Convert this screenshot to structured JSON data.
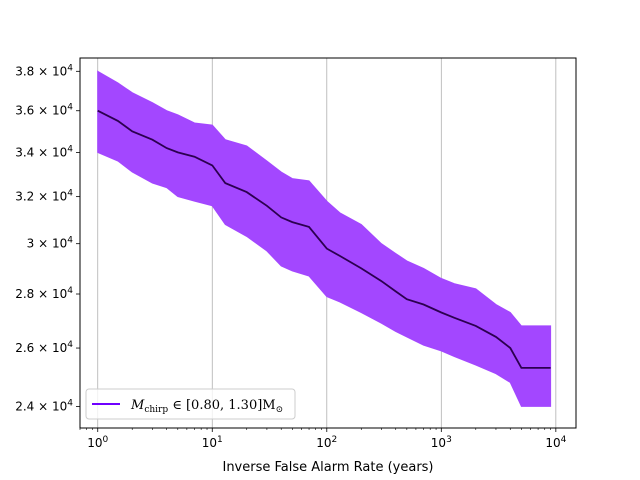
{
  "chart_data": {
    "type": "line",
    "title": "",
    "xlabel": "Inverse False Alarm Rate (years)",
    "ylabel": "",
    "xscale": "log",
    "yscale": "log",
    "xlim": [
      0.7,
      15000
    ],
    "ylim": [
      23300,
      38700
    ],
    "grid": "x-major",
    "legend_position": "lower-left",
    "x_ticks": [
      {
        "value": 1,
        "label": "10^0"
      },
      {
        "value": 10,
        "label": "10^1"
      },
      {
        "value": 100,
        "label": "10^2"
      },
      {
        "value": 1000,
        "label": "10^3"
      },
      {
        "value": 10000,
        "label": "10^4"
      }
    ],
    "y_ticks": [
      {
        "value": 24000,
        "label": "2.4 × 10^4"
      },
      {
        "value": 26000,
        "label": "2.6 × 10^4"
      },
      {
        "value": 28000,
        "label": "2.8 × 10^4"
      },
      {
        "value": 30000,
        "label": "3 × 10^4"
      },
      {
        "value": 32000,
        "label": "3.2 × 10^4"
      },
      {
        "value": 34000,
        "label": "3.4 × 10^4"
      },
      {
        "value": 36000,
        "label": "3.6 × 10^4"
      },
      {
        "value": 38000,
        "label": "3.8 × 10^4"
      }
    ],
    "series": [
      {
        "name": "M_chirp ∈ [0.80, 1.30] M_⊙",
        "color": "#6f00ff",
        "line_color": "#2c0050",
        "band_color": "#a347ff",
        "x": [
          1,
          1.5,
          2,
          3,
          4,
          5,
          7,
          10,
          13,
          20,
          30,
          40,
          50,
          70,
          100,
          130,
          200,
          300,
          400,
          500,
          700,
          1000,
          1300,
          2000,
          3000,
          4000,
          5000,
          7000,
          9000
        ],
        "y": [
          36000,
          35500,
          35000,
          34600,
          34200,
          34000,
          33800,
          33400,
          32600,
          32200,
          31600,
          31100,
          30900,
          30700,
          29800,
          29500,
          29000,
          28500,
          28100,
          27800,
          27600,
          27300,
          27100,
          26800,
          26400,
          26000,
          25300,
          25300,
          25300
        ],
        "y_upper": [
          38000,
          37400,
          36900,
          36400,
          36000,
          35800,
          35400,
          35300,
          34600,
          34300,
          33600,
          33100,
          32800,
          32700,
          31800,
          31300,
          30800,
          30000,
          29600,
          29300,
          29000,
          28600,
          28400,
          28200,
          27600,
          27300,
          26800,
          26800,
          26800
        ],
        "y_lower": [
          34000,
          33600,
          33100,
          32600,
          32400,
          32000,
          31800,
          31600,
          30800,
          30300,
          29700,
          29100,
          28900,
          28700,
          27900,
          27700,
          27300,
          26900,
          26600,
          26400,
          26100,
          25900,
          25700,
          25400,
          25100,
          24800,
          24000,
          24000,
          24000
        ]
      }
    ],
    "legend": {
      "entries": [
        {
          "label_main": "M",
          "label_sub": "chirp",
          "label_rest": " ∈ [0.80, 1.30]M",
          "label_sun": "⊙"
        }
      ]
    }
  }
}
